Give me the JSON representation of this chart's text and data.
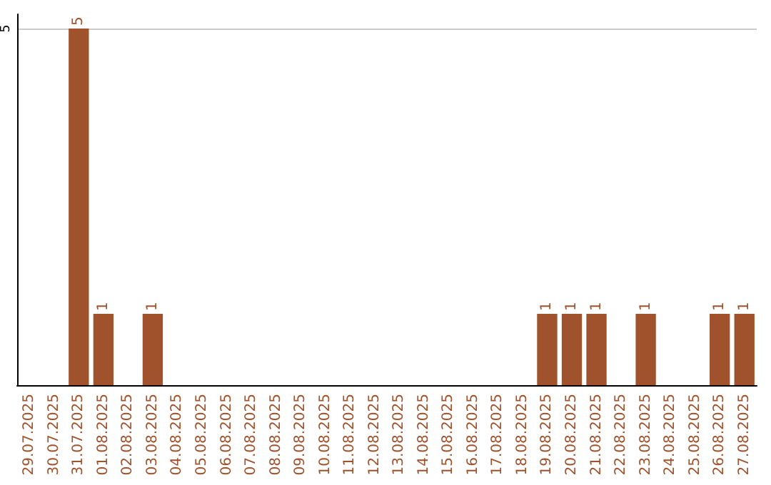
{
  "chart_data": {
    "type": "bar",
    "categories": [
      "29.07.2025",
      "30.07.2025",
      "31.07.2025",
      "01.08.2025",
      "02.08.2025",
      "03.08.2025",
      "04.08.2025",
      "05.08.2025",
      "06.08.2025",
      "07.08.2025",
      "08.08.2025",
      "09.08.2025",
      "10.08.2025",
      "11.08.2025",
      "12.08.2025",
      "13.08.2025",
      "14.08.2025",
      "15.08.2025",
      "16.08.2025",
      "17.08.2025",
      "18.08.2025",
      "19.08.2025",
      "20.08.2025",
      "21.08.2025",
      "22.08.2025",
      "23.08.2025",
      "24.08.2025",
      "25.08.2025",
      "26.08.2025",
      "27.08.2025"
    ],
    "values": [
      0,
      0,
      5,
      1,
      0,
      1,
      0,
      0,
      0,
      0,
      0,
      0,
      0,
      0,
      0,
      0,
      0,
      0,
      0,
      0,
      0,
      1,
      1,
      1,
      0,
      1,
      0,
      0,
      1,
      1
    ],
    "value_labels": [
      null,
      null,
      "5",
      "1",
      null,
      "1",
      null,
      null,
      null,
      null,
      null,
      null,
      null,
      null,
      null,
      null,
      null,
      null,
      null,
      null,
      null,
      "1",
      "1",
      "1",
      null,
      "1",
      null,
      null,
      "1",
      "1"
    ],
    "color": "#a0522d",
    "ylim": [
      0,
      5.2
    ],
    "yticks": [
      5
    ],
    "grid": "y"
  }
}
